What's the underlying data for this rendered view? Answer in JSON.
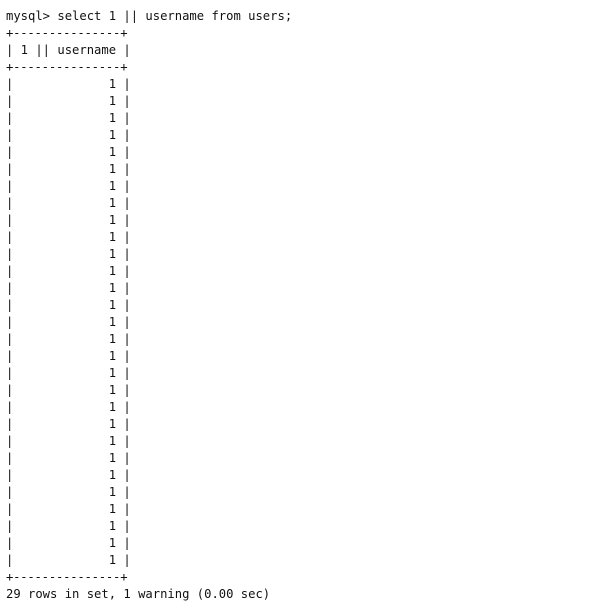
{
  "terminal": {
    "command_line": "mysql> select 1 || username from users;",
    "border": "+---------------+",
    "header": "| 1 || username |",
    "row_value": "|             1 |",
    "row_count": 29,
    "result_summary": "29 rows in set, 1 warning (0.00 sec)"
  }
}
